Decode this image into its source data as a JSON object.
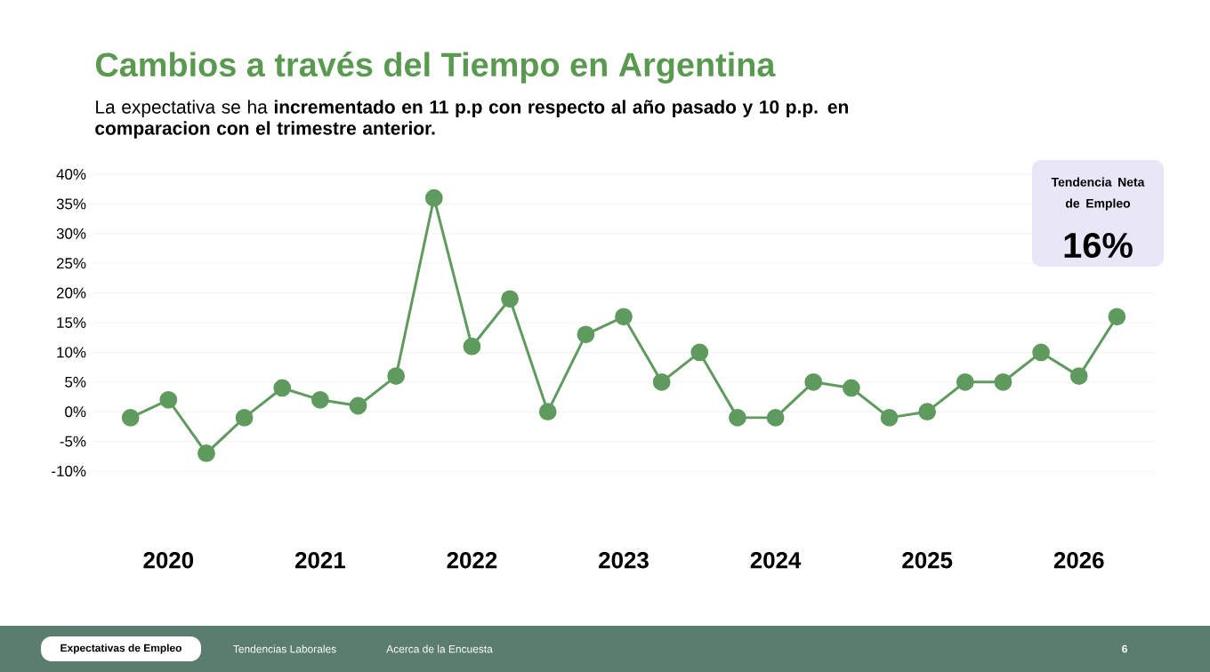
{
  "chart_data": {
    "type": "line",
    "title": "Cambios a través del Tiempo en Argentina",
    "subtitle": "La expectativa se ha **incrementado en 11 p.p con respecto al año pasado y 10 p.p. en comparacion con el trimestre anterior.**",
    "categories": [
      null,
      "2020",
      null,
      null,
      null,
      "2021",
      null,
      null,
      null,
      "2022",
      null,
      null,
      null,
      "2023",
      null,
      null,
      null,
      "2024",
      null,
      null,
      null,
      "2025",
      null,
      null,
      null,
      "2026",
      null
    ],
    "values": [
      -1,
      2,
      -7,
      -1,
      4,
      2,
      1,
      6,
      36,
      11,
      19,
      0,
      13,
      16,
      5,
      10,
      -1,
      -1,
      5,
      4,
      -1,
      0,
      5,
      5,
      10,
      6,
      16
    ],
    "color": "#5f9a5f",
    "marker": "circle",
    "grid": "y",
    "ylim": [
      -10,
      40
    ],
    "yticks": [
      {
        "value": -10,
        "label": "-10%"
      },
      {
        "value": -5,
        "label": "-5%"
      },
      {
        "value": 0,
        "label": "0%"
      },
      {
        "value": 5,
        "label": "5%"
      },
      {
        "value": 10,
        "label": "10%"
      },
      {
        "value": 15,
        "label": "15%"
      },
      {
        "value": 20,
        "label": "20%"
      },
      {
        "value": 25,
        "label": "25%"
      },
      {
        "value": 30,
        "label": "30%"
      },
      {
        "value": 35,
        "label": "35%"
      },
      {
        "value": 40,
        "label": "40%"
      }
    ],
    "annotations": [
      "Tendencia Neta de Empleo",
      "16%",
      "Expectativas de Empleo",
      "Tendencias Laborales",
      "Acerca de la Encuesta",
      "6"
    ]
  }
}
